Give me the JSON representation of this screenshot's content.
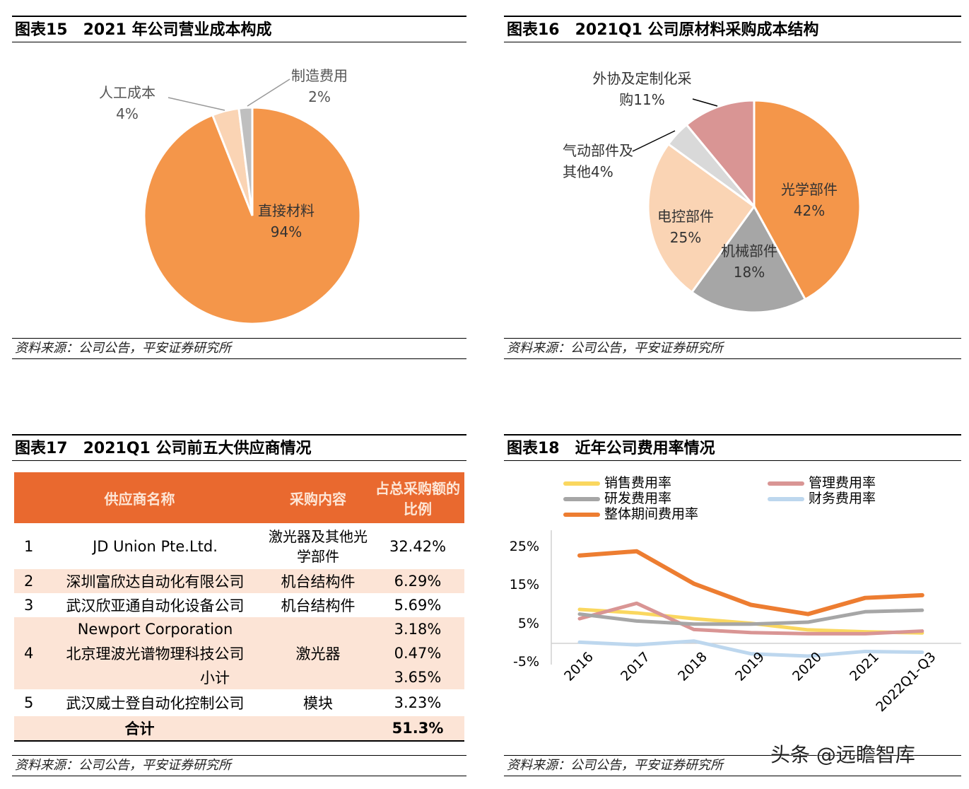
{
  "panels": {
    "p15": {
      "title": "图表15　2021 年公司营业成本构成",
      "source": "资料来源：公司公告，平安证券研究所"
    },
    "p16": {
      "title": "图表16　2021Q1 公司原材料采购成本结构",
      "source": "资料来源：公司公告，平安证券研究所"
    },
    "p17": {
      "title": "图表17　2021Q1 公司前五大供应商情况",
      "source": "资料来源：公司公告，平安证券研究所"
    },
    "p18": {
      "title": "图表18　近年公司费用率情况",
      "source": "资料来源：公司公告，平安证券研究所"
    }
  },
  "table": {
    "headers": [
      "供应商名称",
      "采购内容",
      "占总采购额的比例"
    ],
    "rows": [
      {
        "no": "1",
        "name": "JD Union Pte.Ltd.",
        "content": "激光器及其他光学部件",
        "ratio": "32.42%"
      },
      {
        "no": "2",
        "name": "深圳富欣达自动化有限公司",
        "content": "机台结构件",
        "ratio": "6.29%"
      },
      {
        "no": "3",
        "name": "武汉欣亚通自动化设备公司",
        "content": "机台结构件",
        "ratio": "5.69%"
      },
      {
        "no": "4",
        "name": "Newport Corporation",
        "name2": "北京理波光谱物理科技公司",
        "subtotal_label": "小计",
        "content": "激光器",
        "ratio": "3.18%",
        "ratio2": "0.47%",
        "subtotal": "3.65%"
      },
      {
        "no": "5",
        "name": "武汉威士登自动化控制公司",
        "content": "模块",
        "ratio": "3.23%"
      }
    ],
    "total_label": "合计",
    "total": "51.3%"
  },
  "watermark": "头条 @远瞻智库",
  "chart_data": [
    {
      "type": "pie",
      "title": "2021 年公司营业成本构成",
      "slices": [
        {
          "label": "直接材料",
          "value": 94,
          "text": "94%",
          "color": "#F4964A"
        },
        {
          "label": "人工成本",
          "value": 4,
          "text": "4%",
          "color": "#FAD4B4"
        },
        {
          "label": "制造费用",
          "value": 2,
          "text": "2%",
          "color": "#BFBFBF"
        }
      ]
    },
    {
      "type": "pie",
      "title": "2021Q1 公司原材料采购成本结构",
      "slices": [
        {
          "label": "光学部件",
          "value": 42,
          "text": "42%",
          "color": "#F4964A"
        },
        {
          "label": "机械部件",
          "value": 18,
          "text": "18%",
          "color": "#A6A6A6"
        },
        {
          "label": "电控部件",
          "value": 25,
          "text": "25%",
          "color": "#FAD4B4"
        },
        {
          "label": "气动部件及其他",
          "value": 4,
          "text": "4%",
          "color": "#D9D9D9"
        },
        {
          "label": "外协及定制化采购",
          "value": 11,
          "text": "11%",
          "color": "#D99594"
        }
      ]
    },
    {
      "type": "line",
      "title": "近年公司费用率情况",
      "ylim": [
        -5,
        30
      ],
      "yticks": [
        "25%",
        "15%",
        "5%",
        "-5%"
      ],
      "ytick_values": [
        25,
        15,
        5,
        -5
      ],
      "x": [
        "2016",
        "2017",
        "2018",
        "2019",
        "2020",
        "2021",
        "2022Q1-Q3"
      ],
      "series": [
        {
          "name": "销售费用率",
          "color": "#FAD75F",
          "values": [
            8.8,
            7.9,
            6.4,
            5.2,
            3.5,
            3.0,
            2.7
          ]
        },
        {
          "name": "管理费用率",
          "color": "#D99594",
          "values": [
            6.4,
            10.4,
            3.6,
            2.8,
            2.5,
            2.5,
            3.2
          ]
        },
        {
          "name": "研发费用率",
          "color": "#A6A6A6",
          "values": [
            7.6,
            5.8,
            5.0,
            5.0,
            5.5,
            8.2,
            8.6
          ]
        },
        {
          "name": "财务费用率",
          "color": "#BDD7EE",
          "values": [
            0.3,
            -0.4,
            0.6,
            -2.7,
            -3.3,
            -2.1,
            -2.3
          ]
        },
        {
          "name": "整体期间费用率",
          "color": "#ED7D31",
          "values": [
            22.8,
            23.9,
            15.5,
            10.0,
            7.6,
            11.8,
            12.5
          ]
        }
      ],
      "legend": "top"
    }
  ]
}
